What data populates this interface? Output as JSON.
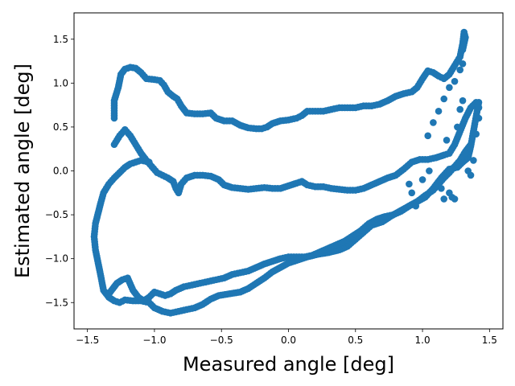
{
  "chart_data": {
    "type": "scatter",
    "title": "",
    "xlabel": "Measured angle [deg]",
    "ylabel": "Estimated angle [deg]",
    "xlim": [
      -1.6,
      1.6
    ],
    "ylim": [
      -1.8,
      1.8
    ],
    "xticks": [
      -1.5,
      -1.0,
      -0.5,
      0.0,
      0.5,
      1.0,
      1.5
    ],
    "yticks": [
      -1.5,
      -1.0,
      -0.5,
      0.0,
      0.5,
      1.0,
      1.5
    ],
    "grid": false,
    "series": [
      {
        "name": "estimated",
        "color": "#1f77b4",
        "outer_top_loop": [
          [
            -1.3,
            0.6
          ],
          [
            -1.3,
            0.8
          ],
          [
            -1.27,
            0.95
          ],
          [
            -1.25,
            1.1
          ],
          [
            -1.22,
            1.16
          ],
          [
            -1.18,
            1.18
          ],
          [
            -1.14,
            1.17
          ],
          [
            -1.1,
            1.12
          ],
          [
            -1.06,
            1.05
          ],
          [
            -1.0,
            1.04
          ],
          [
            -0.96,
            1.03
          ],
          [
            -0.93,
            0.98
          ],
          [
            -0.9,
            0.9
          ],
          [
            -0.86,
            0.85
          ],
          [
            -0.83,
            0.82
          ],
          [
            -0.8,
            0.74
          ],
          [
            -0.76,
            0.66
          ],
          [
            -0.7,
            0.65
          ],
          [
            -0.64,
            0.65
          ],
          [
            -0.58,
            0.66
          ],
          [
            -0.54,
            0.6
          ],
          [
            -0.48,
            0.57
          ],
          [
            -0.42,
            0.57
          ],
          [
            -0.36,
            0.52
          ],
          [
            -0.3,
            0.49
          ],
          [
            -0.24,
            0.48
          ],
          [
            -0.2,
            0.48
          ],
          [
            -0.16,
            0.5
          ],
          [
            -0.12,
            0.54
          ],
          [
            -0.06,
            0.57
          ],
          [
            0.0,
            0.58
          ],
          [
            0.06,
            0.6
          ],
          [
            0.1,
            0.63
          ],
          [
            0.14,
            0.68
          ],
          [
            0.2,
            0.68
          ],
          [
            0.26,
            0.68
          ],
          [
            0.32,
            0.7
          ],
          [
            0.38,
            0.72
          ],
          [
            0.44,
            0.72
          ],
          [
            0.5,
            0.72
          ],
          [
            0.56,
            0.74
          ],
          [
            0.62,
            0.74
          ],
          [
            0.68,
            0.76
          ],
          [
            0.74,
            0.8
          ],
          [
            0.8,
            0.85
          ],
          [
            0.86,
            0.88
          ],
          [
            0.92,
            0.9
          ],
          [
            0.96,
            0.95
          ],
          [
            1.0,
            1.05
          ],
          [
            1.04,
            1.14
          ],
          [
            1.08,
            1.12
          ],
          [
            1.12,
            1.08
          ],
          [
            1.16,
            1.05
          ],
          [
            1.2,
            1.1
          ],
          [
            1.24,
            1.2
          ],
          [
            1.28,
            1.3
          ],
          [
            1.3,
            1.45
          ],
          [
            1.31,
            1.58
          ],
          [
            1.32,
            1.52
          ],
          [
            1.3,
            1.38
          ]
        ],
        "outer_bottom_loop": [
          [
            1.42,
            0.78
          ],
          [
            1.4,
            0.62
          ],
          [
            1.38,
            0.45
          ],
          [
            1.36,
            0.28
          ],
          [
            1.34,
            0.15
          ],
          [
            1.3,
            0.1
          ],
          [
            1.26,
            0.04
          ],
          [
            1.2,
            0.02
          ],
          [
            1.14,
            -0.08
          ],
          [
            1.08,
            -0.2
          ],
          [
            1.02,
            -0.3
          ],
          [
            0.96,
            -0.35
          ],
          [
            0.9,
            -0.4
          ],
          [
            0.84,
            -0.45
          ],
          [
            0.76,
            -0.52
          ],
          [
            0.7,
            -0.58
          ],
          [
            0.62,
            -0.62
          ],
          [
            0.56,
            -0.7
          ],
          [
            0.5,
            -0.78
          ],
          [
            0.44,
            -0.86
          ],
          [
            0.38,
            -0.9
          ],
          [
            0.3,
            -0.93
          ],
          [
            0.22,
            -0.95
          ],
          [
            0.14,
            -0.98
          ],
          [
            0.06,
            -1.02
          ],
          [
            0.0,
            -1.05
          ],
          [
            -0.06,
            -1.1
          ],
          [
            -0.12,
            -1.15
          ],
          [
            -0.18,
            -1.22
          ],
          [
            -0.24,
            -1.28
          ],
          [
            -0.3,
            -1.34
          ],
          [
            -0.36,
            -1.38
          ],
          [
            -0.44,
            -1.4
          ],
          [
            -0.52,
            -1.42
          ],
          [
            -0.58,
            -1.46
          ],
          [
            -0.64,
            -1.52
          ],
          [
            -0.7,
            -1.56
          ],
          [
            -0.76,
            -1.58
          ],
          [
            -0.82,
            -1.6
          ],
          [
            -0.88,
            -1.62
          ],
          [
            -0.94,
            -1.6
          ],
          [
            -1.0,
            -1.56
          ],
          [
            -1.04,
            -1.5
          ],
          [
            -1.1,
            -1.48
          ],
          [
            -1.16,
            -1.48
          ],
          [
            -1.22,
            -1.47
          ],
          [
            -1.26,
            -1.5
          ],
          [
            -1.3,
            -1.48
          ],
          [
            -1.34,
            -1.44
          ],
          [
            -1.38,
            -1.36
          ],
          [
            -1.4,
            -1.2
          ],
          [
            -1.42,
            -1.05
          ],
          [
            -1.44,
            -0.9
          ],
          [
            -1.45,
            -0.75
          ],
          [
            -1.44,
            -0.6
          ],
          [
            -1.42,
            -0.48
          ],
          [
            -1.4,
            -0.36
          ],
          [
            -1.38,
            -0.25
          ],
          [
            -1.34,
            -0.15
          ],
          [
            -1.3,
            -0.08
          ],
          [
            -1.26,
            -0.02
          ],
          [
            -1.22,
            0.04
          ],
          [
            -1.18,
            0.08
          ],
          [
            -1.14,
            0.1
          ],
          [
            -1.1,
            0.12
          ],
          [
            -1.04,
            0.1
          ]
        ],
        "inner_top_curve": [
          [
            -1.3,
            0.3
          ],
          [
            -1.26,
            0.4
          ],
          [
            -1.22,
            0.47
          ],
          [
            -1.18,
            0.4
          ],
          [
            -1.14,
            0.3
          ],
          [
            -1.1,
            0.2
          ],
          [
            -1.06,
            0.12
          ],
          [
            -1.02,
            0.05
          ],
          [
            -0.98,
            -0.02
          ],
          [
            -0.94,
            -0.05
          ],
          [
            -0.9,
            -0.08
          ],
          [
            -0.86,
            -0.12
          ],
          [
            -0.84,
            -0.2
          ],
          [
            -0.82,
            -0.25
          ],
          [
            -0.8,
            -0.15
          ],
          [
            -0.76,
            -0.08
          ],
          [
            -0.7,
            -0.05
          ],
          [
            -0.64,
            -0.05
          ],
          [
            -0.58,
            -0.06
          ],
          [
            -0.52,
            -0.1
          ],
          [
            -0.48,
            -0.16
          ],
          [
            -0.42,
            -0.19
          ],
          [
            -0.36,
            -0.2
          ],
          [
            -0.3,
            -0.21
          ],
          [
            -0.24,
            -0.2
          ],
          [
            -0.18,
            -0.19
          ],
          [
            -0.12,
            -0.2
          ],
          [
            -0.06,
            -0.2
          ],
          [
            0.0,
            -0.17
          ],
          [
            0.06,
            -0.14
          ],
          [
            0.1,
            -0.12
          ],
          [
            0.14,
            -0.16
          ],
          [
            0.2,
            -0.18
          ],
          [
            0.26,
            -0.18
          ],
          [
            0.32,
            -0.2
          ],
          [
            0.38,
            -0.21
          ],
          [
            0.44,
            -0.22
          ],
          [
            0.5,
            -0.22
          ],
          [
            0.56,
            -0.2
          ],
          [
            0.62,
            -0.16
          ],
          [
            0.68,
            -0.12
          ],
          [
            0.74,
            -0.08
          ],
          [
            0.8,
            -0.05
          ],
          [
            0.86,
            0.02
          ],
          [
            0.92,
            0.1
          ],
          [
            0.98,
            0.13
          ],
          [
            1.04,
            0.13
          ],
          [
            1.1,
            0.15
          ],
          [
            1.16,
            0.18
          ],
          [
            1.2,
            0.2
          ],
          [
            1.24,
            0.3
          ],
          [
            1.28,
            0.45
          ],
          [
            1.32,
            0.6
          ],
          [
            1.36,
            0.72
          ],
          [
            1.4,
            0.78
          ],
          [
            1.42,
            0.72
          ]
        ],
        "inner_bottom_curve": [
          [
            -1.34,
            -1.4
          ],
          [
            -1.32,
            -1.36
          ],
          [
            -1.3,
            -1.32
          ],
          [
            -1.28,
            -1.28
          ],
          [
            -1.24,
            -1.24
          ],
          [
            -1.2,
            -1.22
          ],
          [
            -1.16,
            -1.36
          ],
          [
            -1.12,
            -1.44
          ],
          [
            -1.08,
            -1.48
          ],
          [
            -1.04,
            -1.44
          ],
          [
            -1.0,
            -1.38
          ],
          [
            -0.96,
            -1.4
          ],
          [
            -0.92,
            -1.42
          ],
          [
            -0.88,
            -1.4
          ],
          [
            -0.84,
            -1.36
          ],
          [
            -0.78,
            -1.32
          ],
          [
            -0.72,
            -1.3
          ],
          [
            -0.66,
            -1.28
          ],
          [
            -0.6,
            -1.26
          ],
          [
            -0.54,
            -1.24
          ],
          [
            -0.48,
            -1.22
          ],
          [
            -0.42,
            -1.18
          ],
          [
            -0.36,
            -1.16
          ],
          [
            -0.3,
            -1.14
          ],
          [
            -0.24,
            -1.1
          ],
          [
            -0.18,
            -1.06
          ],
          [
            -0.12,
            -1.03
          ],
          [
            -0.06,
            -1.0
          ],
          [
            0.0,
            -0.98
          ],
          [
            0.06,
            -0.98
          ],
          [
            0.12,
            -0.98
          ],
          [
            0.18,
            -0.96
          ],
          [
            0.24,
            -0.92
          ],
          [
            0.3,
            -0.88
          ],
          [
            0.36,
            -0.84
          ],
          [
            0.42,
            -0.8
          ],
          [
            0.48,
            -0.74
          ],
          [
            0.54,
            -0.68
          ],
          [
            0.6,
            -0.6
          ],
          [
            0.66,
            -0.55
          ],
          [
            0.72,
            -0.52
          ],
          [
            0.78,
            -0.5
          ],
          [
            0.84,
            -0.46
          ],
          [
            0.9,
            -0.4
          ],
          [
            0.96,
            -0.35
          ],
          [
            1.02,
            -0.28
          ],
          [
            1.08,
            -0.22
          ],
          [
            1.12,
            -0.15
          ],
          [
            1.16,
            -0.08
          ],
          [
            1.2,
            -0.02
          ],
          [
            1.24,
            0.05
          ],
          [
            1.28,
            0.12
          ],
          [
            1.32,
            0.22
          ],
          [
            1.36,
            0.3
          ]
        ],
        "scattered": [
          [
            0.9,
            -0.15
          ],
          [
            0.92,
            -0.25
          ],
          [
            0.95,
            -0.4
          ],
          [
            1.0,
            -0.1
          ],
          [
            1.05,
            0.0
          ],
          [
            1.1,
            0.15
          ],
          [
            1.14,
            -0.2
          ],
          [
            1.16,
            -0.32
          ],
          [
            1.18,
            0.35
          ],
          [
            1.2,
            -0.25
          ],
          [
            1.22,
            -0.3
          ],
          [
            1.24,
            -0.32
          ],
          [
            1.26,
            0.5
          ],
          [
            1.28,
            0.7
          ],
          [
            1.3,
            0.8
          ],
          [
            1.32,
            0.2
          ],
          [
            1.34,
            0.0
          ],
          [
            1.36,
            -0.05
          ],
          [
            1.38,
            0.12
          ],
          [
            1.4,
            0.42
          ],
          [
            1.42,
            0.6
          ],
          [
            1.04,
            0.4
          ],
          [
            1.08,
            0.55
          ],
          [
            1.12,
            0.68
          ],
          [
            1.16,
            0.82
          ],
          [
            1.2,
            0.95
          ],
          [
            1.24,
            1.02
          ],
          [
            1.28,
            1.15
          ],
          [
            1.3,
            1.22
          ]
        ]
      }
    ]
  }
}
